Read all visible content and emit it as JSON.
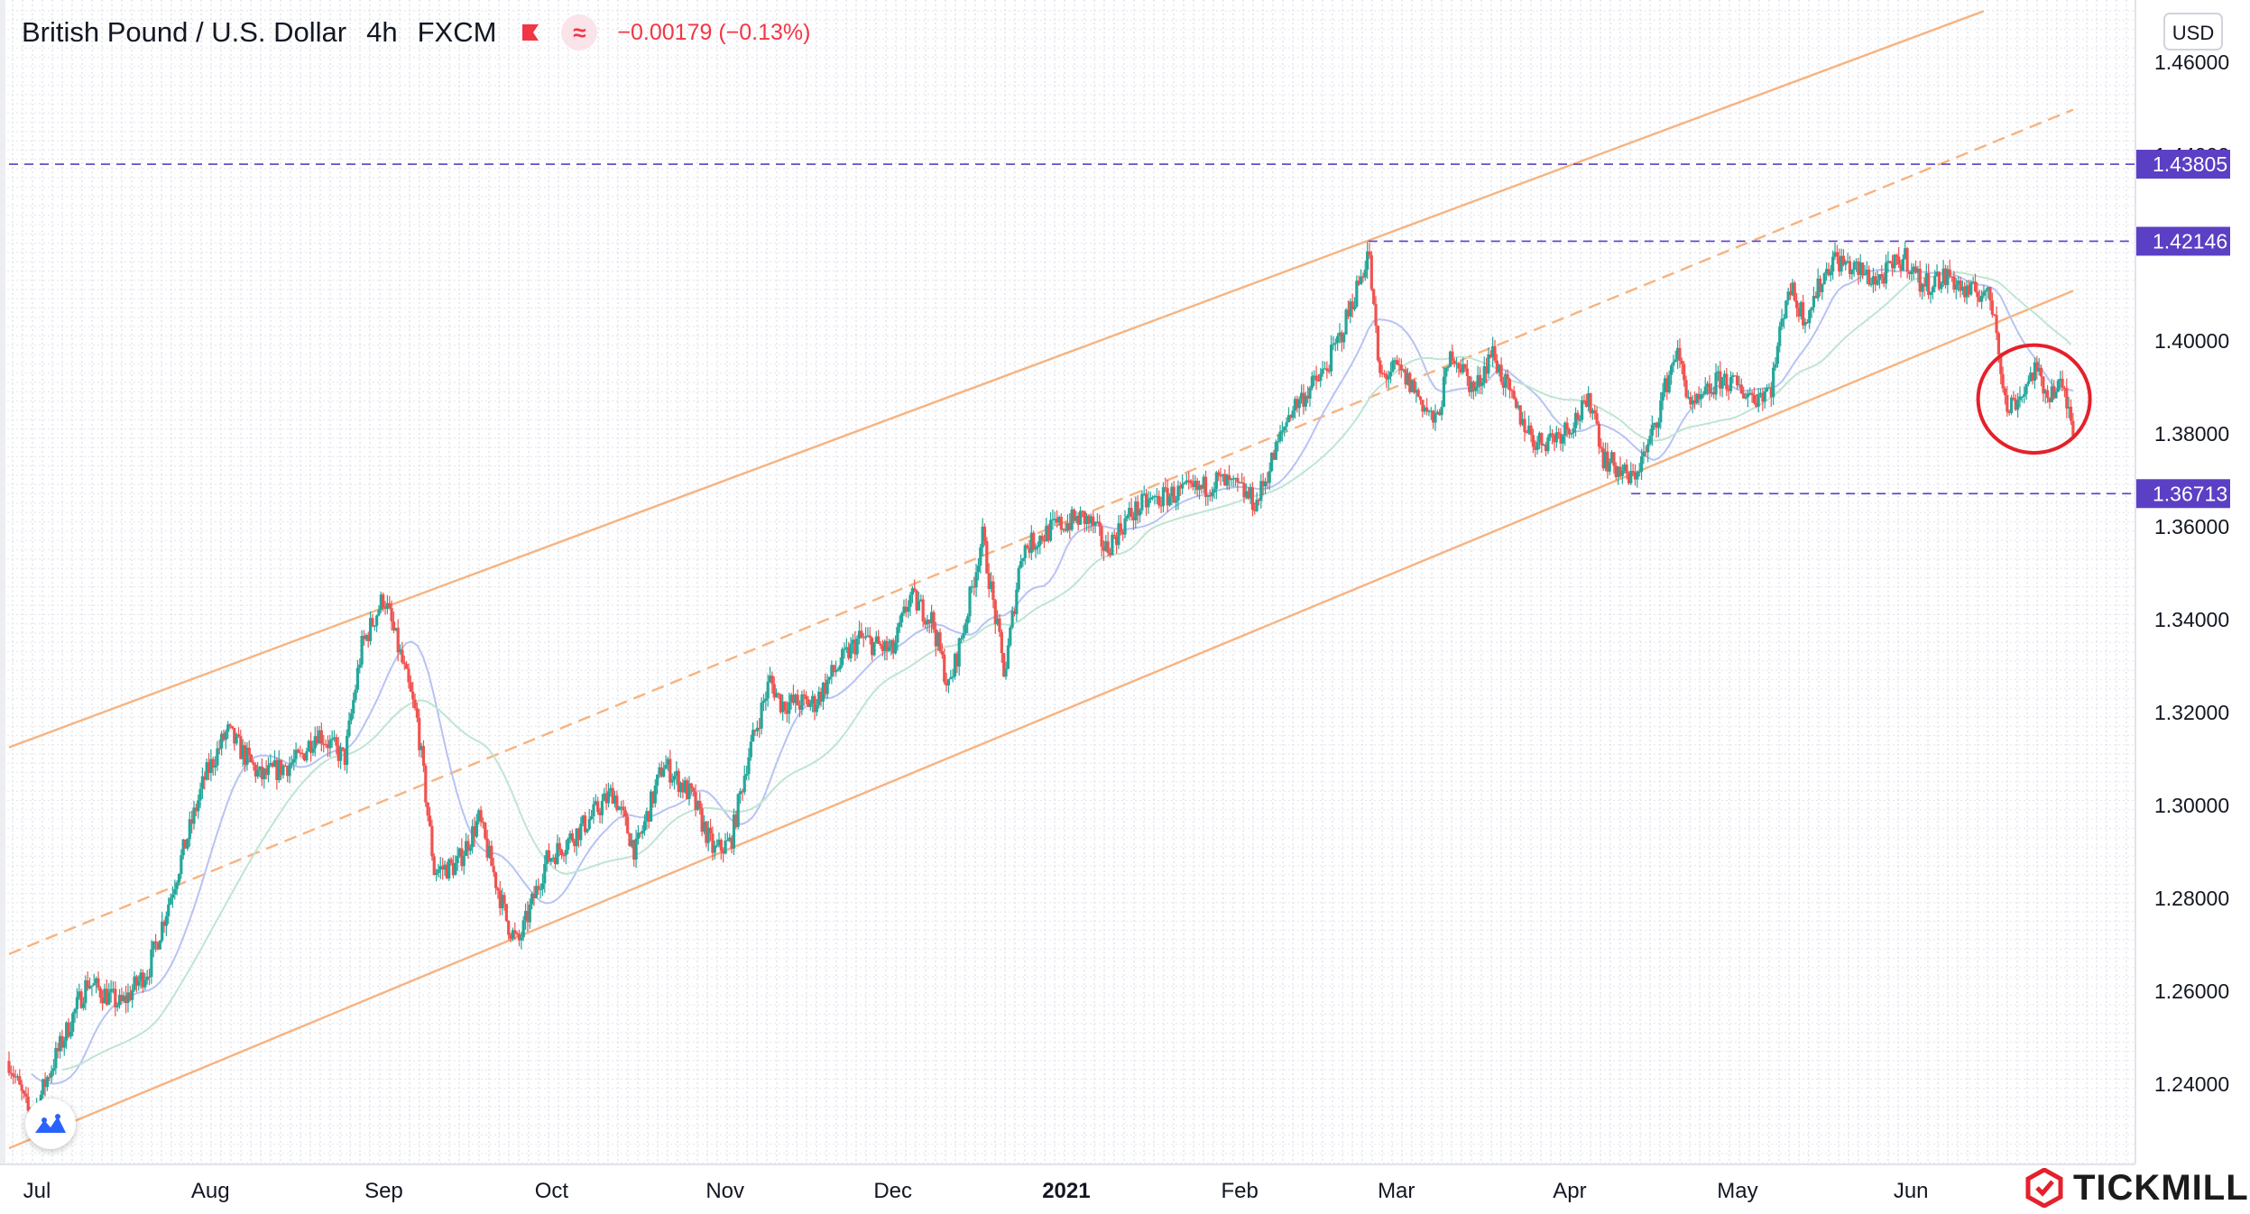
{
  "header": {
    "symbol": "British Pound / U.S. Dollar",
    "interval": "4h",
    "exchange": "FXCM",
    "change": "−0.00179 (−0.13%)",
    "indicator_icon": "wave-icon",
    "flag_icon": "flag-icon"
  },
  "currency_button": "USD",
  "brand": {
    "name": "TICKMILL"
  },
  "colors": {
    "up": "#26a69a",
    "down": "#ef5350",
    "channel": "#f7b37f",
    "level": "#5b3fc4",
    "ma_blue": "#b8c3f2",
    "ma_green": "#bfe5d2",
    "highlight": "#e4212b"
  },
  "chart_data": {
    "type": "candlestick",
    "symbol": "GBPUSD",
    "timeframe": "4h",
    "x_range": [
      "2020-06-26",
      "2021-06-30"
    ],
    "ylim": [
      1.226,
      1.47
    ],
    "yticks": [
      "1.24000",
      "1.26000",
      "1.28000",
      "1.30000",
      "1.32000",
      "1.34000",
      "1.36000",
      "1.38000",
      "1.40000",
      "1.42000",
      "1.44000",
      "1.46000"
    ],
    "xticks": [
      {
        "label": "Jul",
        "date": "2020-07-01",
        "bold": false
      },
      {
        "label": "Aug",
        "date": "2020-08-01",
        "bold": false
      },
      {
        "label": "Sep",
        "date": "2020-09-01",
        "bold": false
      },
      {
        "label": "Oct",
        "date": "2020-10-01",
        "bold": false
      },
      {
        "label": "Nov",
        "date": "2020-11-01",
        "bold": false
      },
      {
        "label": "Dec",
        "date": "2020-12-01",
        "bold": false
      },
      {
        "label": "2021",
        "date": "2021-01-01",
        "bold": true
      },
      {
        "label": "Feb",
        "date": "2021-02-01",
        "bold": false
      },
      {
        "label": "Mar",
        "date": "2021-03-01",
        "bold": false
      },
      {
        "label": "Apr",
        "date": "2021-04-01",
        "bold": false
      },
      {
        "label": "May",
        "date": "2021-05-01",
        "bold": false
      },
      {
        "label": "Jun",
        "date": "2021-06-01",
        "bold": false
      }
    ],
    "price_levels": [
      {
        "value": 1.43805,
        "label": "1.43805",
        "from": "2020-06-26"
      },
      {
        "value": 1.42146,
        "label": "1.42146",
        "from": "2021-02-24"
      },
      {
        "value": 1.36713,
        "label": "1.36713",
        "from": "2021-04-12"
      }
    ],
    "channel_lines": [
      {
        "name": "upper",
        "style": "solid",
        "points": [
          [
            "2020-06-26",
            1.3125
          ],
          [
            "2021-06-14",
            1.471
          ]
        ]
      },
      {
        "name": "middle",
        "style": "dashed",
        "points": [
          [
            "2020-06-26",
            1.268
          ],
          [
            "2021-06-30",
            1.4498
          ]
        ]
      },
      {
        "name": "lower",
        "style": "solid",
        "points": [
          [
            "2020-06-26",
            1.2262
          ],
          [
            "2021-06-30",
            1.4108
          ]
        ]
      }
    ],
    "price_path": [
      [
        "2020-06-26",
        1.245
      ],
      [
        "2020-06-30",
        1.232
      ],
      [
        "2020-07-03",
        1.242
      ],
      [
        "2020-07-10",
        1.262
      ],
      [
        "2020-07-16",
        1.257
      ],
      [
        "2020-07-21",
        1.265
      ],
      [
        "2020-07-24",
        1.277
      ],
      [
        "2020-07-31",
        1.306
      ],
      [
        "2020-08-04",
        1.316
      ],
      [
        "2020-08-10",
        1.306
      ],
      [
        "2020-08-17",
        1.31
      ],
      [
        "2020-08-20",
        1.316
      ],
      [
        "2020-08-25",
        1.31
      ],
      [
        "2020-08-28",
        1.334
      ],
      [
        "2020-09-01",
        1.345
      ],
      [
        "2020-09-04",
        1.332
      ],
      [
        "2020-09-07",
        1.318
      ],
      [
        "2020-09-10",
        1.286
      ],
      [
        "2020-09-14",
        1.287
      ],
      [
        "2020-09-18",
        1.297
      ],
      [
        "2020-09-23",
        1.275
      ],
      [
        "2020-09-25",
        1.27
      ],
      [
        "2020-09-30",
        1.288
      ],
      [
        "2020-10-07",
        1.296
      ],
      [
        "2020-10-12",
        1.303
      ],
      [
        "2020-10-16",
        1.29
      ],
      [
        "2020-10-21",
        1.309
      ],
      [
        "2020-10-26",
        1.302
      ],
      [
        "2020-10-30",
        1.29
      ],
      [
        "2020-11-02",
        1.292
      ],
      [
        "2020-11-05",
        1.31
      ],
      [
        "2020-11-09",
        1.327
      ],
      [
        "2020-11-11",
        1.322
      ],
      [
        "2020-11-17",
        1.322
      ],
      [
        "2020-11-20",
        1.328
      ],
      [
        "2020-11-25",
        1.336
      ],
      [
        "2020-12-01",
        1.333
      ],
      [
        "2020-12-04",
        1.345
      ],
      [
        "2020-12-08",
        1.34
      ],
      [
        "2020-12-11",
        1.325
      ],
      [
        "2020-12-14",
        1.34
      ],
      [
        "2020-12-17",
        1.358
      ],
      [
        "2020-12-21",
        1.328
      ],
      [
        "2020-12-24",
        1.355
      ],
      [
        "2020-12-30",
        1.36
      ],
      [
        "2021-01-04",
        1.362
      ],
      [
        "2021-01-06",
        1.36
      ],
      [
        "2021-01-08",
        1.355
      ],
      [
        "2021-01-12",
        1.362
      ],
      [
        "2021-01-15",
        1.365
      ],
      [
        "2021-01-20",
        1.367
      ],
      [
        "2021-01-25",
        1.368
      ],
      [
        "2021-01-28",
        1.37
      ],
      [
        "2021-02-01",
        1.368
      ],
      [
        "2021-02-04",
        1.365
      ],
      [
        "2021-02-10",
        1.385
      ],
      [
        "2021-02-16",
        1.393
      ],
      [
        "2021-02-19",
        1.401
      ],
      [
        "2021-02-23",
        1.415
      ],
      [
        "2021-02-24",
        1.42
      ],
      [
        "2021-02-26",
        1.392
      ],
      [
        "2021-03-01",
        1.394
      ],
      [
        "2021-03-04",
        1.39
      ],
      [
        "2021-03-08",
        1.382
      ],
      [
        "2021-03-11",
        1.398
      ],
      [
        "2021-03-15",
        1.389
      ],
      [
        "2021-03-18",
        1.398
      ],
      [
        "2021-03-22",
        1.386
      ],
      [
        "2021-03-26",
        1.378
      ],
      [
        "2021-03-30",
        1.38
      ],
      [
        "2021-04-01",
        1.382
      ],
      [
        "2021-04-05",
        1.387
      ],
      [
        "2021-04-07",
        1.375
      ],
      [
        "2021-04-12",
        1.37
      ],
      [
        "2021-04-15",
        1.377
      ],
      [
        "2021-04-20",
        1.398
      ],
      [
        "2021-04-23",
        1.385
      ],
      [
        "2021-04-28",
        1.392
      ],
      [
        "2021-05-04",
        1.388
      ],
      [
        "2021-05-07",
        1.39
      ],
      [
        "2021-05-10",
        1.412
      ],
      [
        "2021-05-13",
        1.405
      ],
      [
        "2021-05-18",
        1.418
      ],
      [
        "2021-05-21",
        1.416
      ],
      [
        "2021-05-26",
        1.413
      ],
      [
        "2021-05-31",
        1.418
      ],
      [
        "2021-06-03",
        1.412
      ],
      [
        "2021-06-08",
        1.414
      ],
      [
        "2021-06-11",
        1.41
      ],
      [
        "2021-06-14",
        1.411
      ],
      [
        "2021-06-16",
        1.406
      ],
      [
        "2021-06-18",
        1.385
      ],
      [
        "2021-06-21",
        1.389
      ],
      [
        "2021-06-23",
        1.394
      ],
      [
        "2021-06-25",
        1.389
      ],
      [
        "2021-06-28",
        1.39
      ],
      [
        "2021-06-30",
        1.382
      ]
    ],
    "moving_averages": [
      {
        "name": "fast",
        "color": "#b8c3f2",
        "lag_days": 10
      },
      {
        "name": "slow",
        "color": "#bfe5d2",
        "lag_days": 24
      }
    ],
    "annotation": {
      "type": "ellipse",
      "color": "#e4212b",
      "center": [
        "2021-06-23",
        1.3875
      ],
      "radius_days": 10,
      "radius_price": 0.0116
    },
    "price_axis": "right",
    "grid": true
  }
}
